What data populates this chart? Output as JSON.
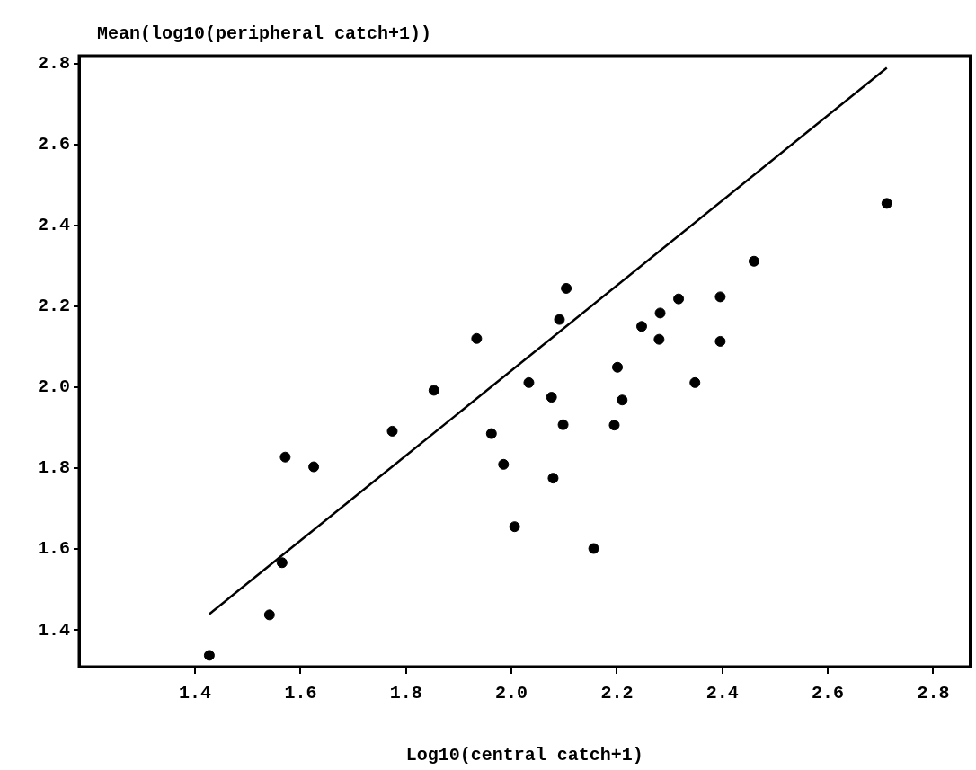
{
  "chart_data": {
    "type": "scatter",
    "ylabel": "Mean(log10(peripheral catch+1))",
    "xlabel": "Log10(central catch+1)",
    "xlim": [
      1.18,
      2.87
    ],
    "ylim": [
      1.31,
      2.82
    ],
    "xticks": [
      1.4,
      1.6,
      1.8,
      {
        "value": 2,
        "label": "2.0"
      },
      2.2,
      2.4,
      2.6,
      2.8
    ],
    "yticks": [
      1.4,
      1.6,
      1.8,
      {
        "value": 2,
        "label": "2.0"
      },
      2.2,
      2.4,
      2.6,
      2.8
    ],
    "grid": false,
    "legend": false,
    "series": [
      {
        "color": "#000000",
        "marker": "circle",
        "x": [
          1.427,
          1.541,
          1.565,
          1.571,
          1.625,
          1.774,
          1.853,
          1.934,
          1.962,
          1.985,
          2.006,
          2.033,
          2.076,
          2.079,
          2.091,
          2.098,
          2.104,
          2.156,
          2.195,
          2.201,
          2.21,
          2.247,
          2.28,
          2.282,
          2.317,
          2.348,
          2.396,
          2.396,
          2.46,
          2.712
        ],
        "values": [
          1.338,
          1.438,
          1.567,
          1.828,
          1.804,
          1.892,
          1.993,
          2.121,
          1.886,
          1.81,
          1.656,
          2.012,
          1.976,
          1.776,
          2.168,
          1.908,
          2.245,
          1.602,
          1.907,
          2.05,
          1.969,
          2.151,
          2.119,
          2.184,
          2.219,
          2.012,
          2.224,
          2.114,
          2.312,
          2.455
        ]
      },
      {
        "type": "line",
        "color": "#000000",
        "marker": "none",
        "x": [
          1.427,
          2.712
        ],
        "values": [
          1.44,
          2.79
        ]
      }
    ]
  }
}
